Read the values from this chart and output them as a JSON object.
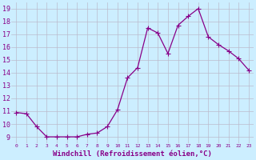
{
  "x": [
    0,
    1,
    2,
    3,
    4,
    5,
    6,
    7,
    8,
    9,
    10,
    11,
    12,
    13,
    14,
    15,
    16,
    17,
    18,
    19,
    20,
    21,
    22,
    23
  ],
  "y": [
    10.9,
    10.8,
    9.8,
    9.0,
    9.0,
    9.0,
    9.0,
    9.2,
    9.3,
    9.8,
    11.1,
    13.6,
    14.4,
    17.5,
    17.1,
    15.5,
    17.7,
    18.4,
    19.0,
    16.8,
    16.2,
    15.7,
    15.1,
    14.2
  ],
  "line_color": "#880088",
  "marker": "+",
  "marker_size": 4,
  "linewidth": 0.9,
  "xlabel": "Windchill (Refroidissement éolien,°C)",
  "xlim": [
    -0.5,
    23.5
  ],
  "ylim": [
    8.5,
    19.5
  ],
  "yticks": [
    9,
    10,
    11,
    12,
    13,
    14,
    15,
    16,
    17,
    18,
    19
  ],
  "xticks": [
    0,
    1,
    2,
    3,
    4,
    5,
    6,
    7,
    8,
    9,
    10,
    11,
    12,
    13,
    14,
    15,
    16,
    17,
    18,
    19,
    20,
    21,
    22,
    23
  ],
  "bg_color": "#cceeff",
  "grid_color": "#bbbbcc",
  "tick_color": "#880088",
  "label_color": "#880088",
  "font_size_ticks_x": 4.5,
  "font_size_ticks_y": 6,
  "font_size_xlabel": 6.5
}
